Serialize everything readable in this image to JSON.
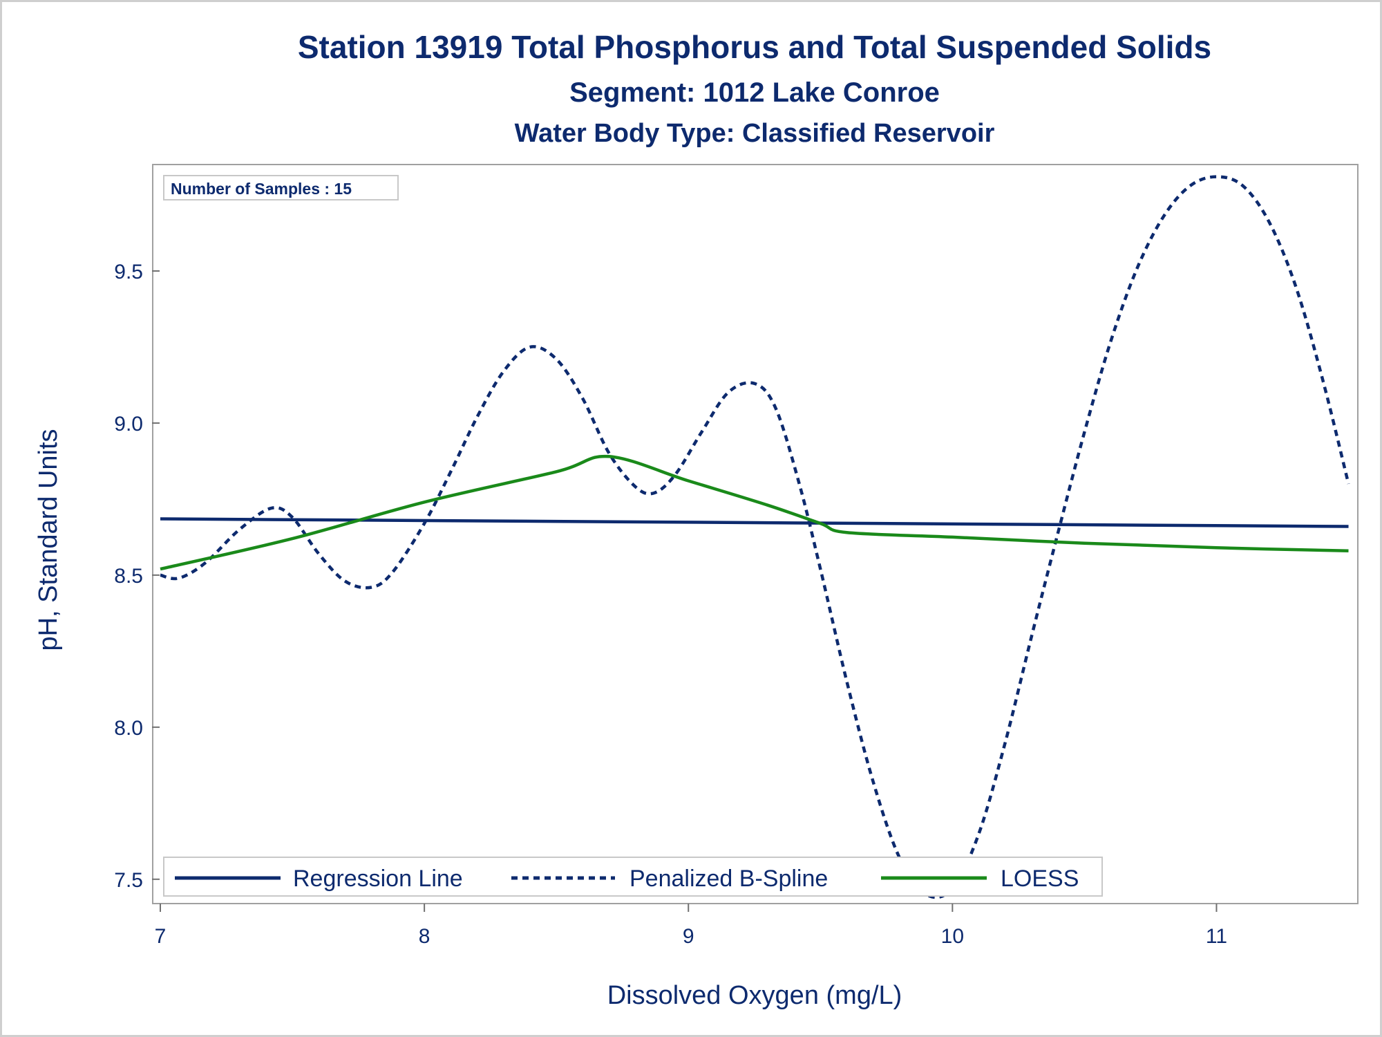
{
  "chart_data": {
    "type": "line",
    "title": "Station 13919  Total Phosphorus and Total Suspended Solids",
    "subtitle": "Segment: 1012  Lake Conroe",
    "subtitle2": "Water Body Type: Classified Reservoir",
    "xlabel": "Dissolved Oxygen (mg/L)",
    "ylabel": "pH, Standard Units",
    "xlim": [
      7,
      11.53
    ],
    "ylim": [
      7.42,
      9.85
    ],
    "xticks": [
      7,
      8,
      9,
      10,
      11
    ],
    "xtick_labels": [
      "7",
      "8",
      "9",
      "10",
      "11"
    ],
    "yticks": [
      7.5,
      8.0,
      8.5,
      9.0,
      9.5
    ],
    "ytick_labels": [
      "7.5",
      "8.0",
      "8.5",
      "9.0",
      "9.5"
    ],
    "inset_label": "Number of Samples : 15",
    "legend_position": "bottom-left inside",
    "grid": false,
    "series": [
      {
        "name": "Regression Line",
        "style": "solid",
        "color": "#0d2a6e",
        "x": [
          7.0,
          11.5
        ],
        "y": [
          8.685,
          8.66
        ]
      },
      {
        "name": "Penalized B-Spline",
        "style": "dashed",
        "color": "#0d2a6e",
        "x": [
          7.0,
          7.07,
          7.17,
          7.3,
          7.42,
          7.5,
          7.6,
          7.7,
          7.8,
          7.88,
          8.0,
          8.1,
          8.2,
          8.3,
          8.4,
          8.5,
          8.6,
          8.7,
          8.8,
          8.87,
          8.95,
          9.05,
          9.15,
          9.25,
          9.33,
          9.42,
          9.5,
          9.6,
          9.7,
          9.8,
          9.9,
          10.0,
          10.1,
          10.2,
          10.3,
          10.4,
          10.5,
          10.6,
          10.7,
          10.8,
          10.9,
          11.0,
          11.1,
          11.2,
          11.3,
          11.4,
          11.5
        ],
        "y": [
          8.5,
          8.49,
          8.54,
          8.65,
          8.72,
          8.69,
          8.57,
          8.48,
          8.46,
          8.51,
          8.67,
          8.84,
          9.02,
          9.17,
          9.25,
          9.21,
          9.08,
          8.9,
          8.79,
          8.77,
          8.83,
          8.97,
          9.1,
          9.13,
          9.05,
          8.8,
          8.52,
          8.15,
          7.82,
          7.57,
          7.45,
          7.47,
          7.65,
          7.95,
          8.3,
          8.64,
          8.97,
          9.27,
          9.51,
          9.68,
          9.78,
          9.81,
          9.78,
          9.66,
          9.45,
          9.15,
          8.8
        ]
      },
      {
        "name": "LOESS",
        "style": "solid",
        "color": "#1a8a1a",
        "x": [
          7.0,
          7.5,
          8.0,
          8.5,
          8.7,
          9.0,
          9.3,
          9.5,
          9.6,
          10.0,
          10.5,
          11.0,
          11.5
        ],
        "y": [
          8.52,
          8.62,
          8.74,
          8.84,
          8.89,
          8.81,
          8.73,
          8.67,
          8.64,
          8.625,
          8.605,
          8.59,
          8.58
        ]
      }
    ]
  }
}
